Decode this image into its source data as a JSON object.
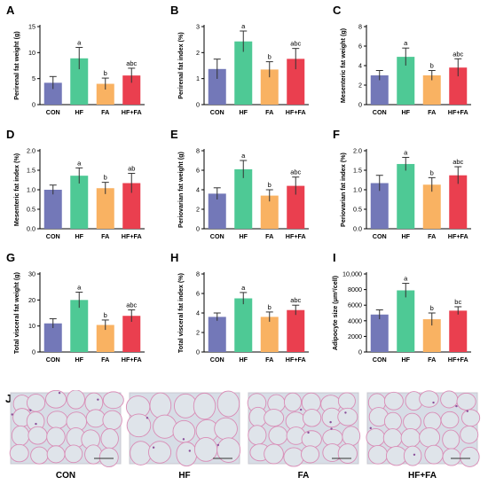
{
  "chart_data": [
    {
      "panel": "A",
      "type": "bar",
      "ylabel": "Perirenal fat weight (g)",
      "categories": [
        "CON",
        "HF",
        "FA",
        "HF+FA"
      ],
      "ylim": [
        0,
        15
      ],
      "ticks": [
        "0",
        "5",
        "10",
        "15"
      ],
      "tick_values": [
        0,
        5,
        10,
        15
      ],
      "values": [
        4.2,
        8.9,
        4.0,
        5.6
      ],
      "errors": [
        1.2,
        2.1,
        1.1,
        1.4
      ],
      "sig": [
        "",
        "a",
        "b",
        "abc"
      ]
    },
    {
      "panel": "B",
      "type": "bar",
      "ylabel": "Perirenal fat index (%)",
      "categories": [
        "CON",
        "HF",
        "FA",
        "HF+FA"
      ],
      "ylim": [
        0,
        3
      ],
      "ticks": [
        "0",
        "1",
        "2",
        "3"
      ],
      "tick_values": [
        0,
        1,
        2,
        3
      ],
      "values": [
        1.37,
        2.43,
        1.35,
        1.76
      ],
      "errors": [
        0.38,
        0.4,
        0.3,
        0.4
      ],
      "sig": [
        "",
        "a",
        "b",
        "abc"
      ]
    },
    {
      "panel": "C",
      "type": "bar",
      "ylabel": "Mesenteric fat weight (g)",
      "categories": [
        "CON",
        "HF",
        "FA",
        "HF+FA"
      ],
      "ylim": [
        0,
        8
      ],
      "ticks": [
        "0",
        "2",
        "4",
        "6",
        "8"
      ],
      "tick_values": [
        0,
        2,
        4,
        6,
        8
      ],
      "values": [
        3.0,
        4.9,
        3.0,
        3.8
      ],
      "errors": [
        0.5,
        0.9,
        0.5,
        0.9
      ],
      "sig": [
        "",
        "a",
        "b",
        "abc"
      ]
    },
    {
      "panel": "D",
      "type": "bar",
      "ylabel": "Mesenteric fat index (%)",
      "categories": [
        "CON",
        "HF",
        "FA",
        "HF+FA"
      ],
      "ylim": [
        0,
        2.0
      ],
      "ticks": [
        "0.0",
        "0.5",
        "1.0",
        "1.5",
        "2.0"
      ],
      "tick_values": [
        0,
        0.5,
        1.0,
        1.5,
        2.0
      ],
      "values": [
        1.0,
        1.36,
        1.04,
        1.17
      ],
      "errors": [
        0.12,
        0.2,
        0.15,
        0.25
      ],
      "sig": [
        "",
        "a",
        "b",
        "ab"
      ]
    },
    {
      "panel": "E",
      "type": "bar",
      "ylabel": "Periovarian fat weight (g)",
      "categories": [
        "CON",
        "HF",
        "FA",
        "HF+FA"
      ],
      "ylim": [
        0,
        8
      ],
      "ticks": [
        "0",
        "2",
        "4",
        "6",
        "8"
      ],
      "tick_values": [
        0,
        2,
        4,
        6,
        8
      ],
      "values": [
        3.6,
        6.1,
        3.4,
        4.4
      ],
      "errors": [
        0.6,
        0.9,
        0.6,
        0.9
      ],
      "sig": [
        "",
        "a",
        "b",
        "abc"
      ]
    },
    {
      "panel": "F",
      "type": "bar",
      "ylabel": "Periovarian fat index (%)",
      "categories": [
        "CON",
        "HF",
        "FA",
        "HF+FA"
      ],
      "ylim": [
        0,
        2.0
      ],
      "ticks": [
        "0.0",
        "0.5",
        "1.0",
        "1.5",
        "2.0"
      ],
      "tick_values": [
        0,
        0.5,
        1.0,
        1.5,
        2.0
      ],
      "values": [
        1.17,
        1.66,
        1.13,
        1.37
      ],
      "errors": [
        0.2,
        0.17,
        0.18,
        0.22
      ],
      "sig": [
        "",
        "a",
        "b",
        "abc"
      ]
    },
    {
      "panel": "G",
      "type": "bar",
      "ylabel": "Total visceral fat weight (g)",
      "categories": [
        "CON",
        "HF",
        "FA",
        "HF+FA"
      ],
      "ylim": [
        0,
        30
      ],
      "ticks": [
        "0",
        "10",
        "20",
        "30"
      ],
      "tick_values": [
        0,
        10,
        20,
        30
      ],
      "values": [
        11.0,
        20.0,
        10.4,
        13.9
      ],
      "errors": [
        1.8,
        3.0,
        1.9,
        2.3
      ],
      "sig": [
        "",
        "a",
        "b",
        "abc"
      ]
    },
    {
      "panel": "H",
      "type": "bar",
      "ylabel": "Total visceral fat index (%)",
      "categories": [
        "CON",
        "HF",
        "FA",
        "HF+FA"
      ],
      "ylim": [
        0,
        8
      ],
      "ticks": [
        "0",
        "2",
        "4",
        "6",
        "8"
      ],
      "tick_values": [
        0,
        2,
        4,
        6,
        8
      ],
      "values": [
        3.6,
        5.5,
        3.6,
        4.3
      ],
      "errors": [
        0.4,
        0.6,
        0.5,
        0.5
      ],
      "sig": [
        "",
        "a",
        "b",
        "abc"
      ]
    },
    {
      "panel": "I",
      "type": "bar",
      "ylabel": "Adipocyte size (μm²/cell)",
      "categories": [
        "CON",
        "HF",
        "FA",
        "HF+FA"
      ],
      "ylim": [
        0,
        10000
      ],
      "ticks": [
        "0",
        "2000",
        "4000",
        "6000",
        "8000",
        "10,000"
      ],
      "tick_values": [
        0,
        2000,
        4000,
        6000,
        8000,
        10000
      ],
      "values": [
        4800,
        7900,
        4200,
        5300
      ],
      "errors": [
        600,
        900,
        800,
        500
      ],
      "sig": [
        "",
        "a",
        "b",
        "bc"
      ]
    }
  ],
  "colors": {
    "CON": "#7378b8",
    "HF": "#4ec995",
    "FA": "#f9b262",
    "HF+FA": "#ea3f4f"
  },
  "panel_j": {
    "letter": "J",
    "labels": [
      "CON",
      "HF",
      "FA",
      "HF+FA"
    ]
  }
}
